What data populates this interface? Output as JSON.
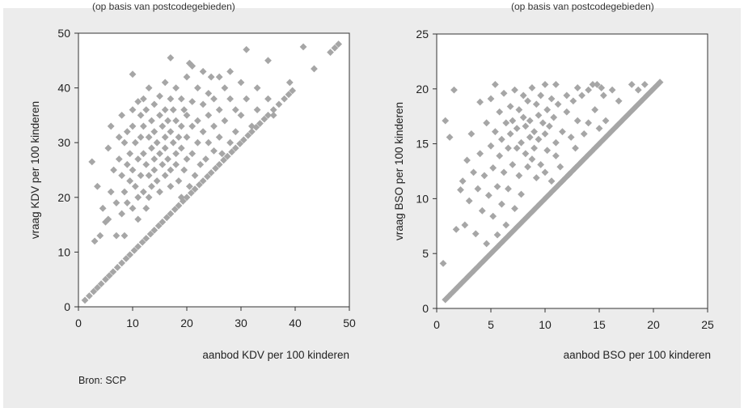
{
  "top_fragments": {
    "left": "(op basis van postcodegebieden)",
    "right": "(op basis van postcodegebieden)"
  },
  "source": "Bron: SCP",
  "colors": {
    "panel_background": "#ececec",
    "plot_background": "#ffffff",
    "marker": "#a6a6a6",
    "frame": "#333333"
  },
  "chart_data": [
    {
      "type": "scatter",
      "title": "",
      "xlabel": "aanbod KDV per 100 kinderen",
      "ylabel": "vraag KDV per 100 kinderen",
      "xlim": [
        0,
        50
      ],
      "ylim": [
        0,
        50
      ],
      "xticks": [
        0,
        10,
        20,
        30,
        40,
        50
      ],
      "yticks": [
        0,
        10,
        20,
        30,
        40,
        50
      ],
      "grid": false,
      "marker": "diamond",
      "points": [
        [
          1.2,
          1.2
        ],
        [
          2,
          2
        ],
        [
          2.8,
          2.8
        ],
        [
          3.5,
          3.5
        ],
        [
          4.2,
          4.2
        ],
        [
          5,
          5
        ],
        [
          5.7,
          5.7
        ],
        [
          6.4,
          6.4
        ],
        [
          7.2,
          7.2
        ],
        [
          8,
          8
        ],
        [
          8.8,
          8.8
        ],
        [
          9.5,
          9.5
        ],
        [
          10.3,
          10.3
        ],
        [
          11,
          11
        ],
        [
          11.8,
          11.8
        ],
        [
          12.5,
          12.5
        ],
        [
          13.3,
          13.3
        ],
        [
          14,
          14
        ],
        [
          14.8,
          14.8
        ],
        [
          15.5,
          15.5
        ],
        [
          16.3,
          16.3
        ],
        [
          17,
          17
        ],
        [
          17.8,
          17.8
        ],
        [
          18.5,
          18.5
        ],
        [
          19.3,
          19.3
        ],
        [
          20,
          20
        ],
        [
          20.8,
          20.8
        ],
        [
          21.5,
          21.5
        ],
        [
          22.3,
          22.3
        ],
        [
          23,
          23
        ],
        [
          23.8,
          23.8
        ],
        [
          24.5,
          24.5
        ],
        [
          25.3,
          25.3
        ],
        [
          26,
          26
        ],
        [
          26.8,
          26.8
        ],
        [
          27.5,
          27.5
        ],
        [
          28.3,
          28.3
        ],
        [
          29,
          29
        ],
        [
          29.8,
          29.8
        ],
        [
          30.5,
          30.5
        ],
        [
          31.3,
          31.3
        ],
        [
          32,
          32
        ],
        [
          32.8,
          32.8
        ],
        [
          33.5,
          33.5
        ],
        [
          34.3,
          34.3
        ],
        [
          35,
          35
        ],
        [
          36,
          36
        ],
        [
          37,
          37
        ],
        [
          38,
          38
        ],
        [
          38.8,
          38.8
        ],
        [
          39.5,
          39.5
        ],
        [
          46.5,
          46.5
        ],
        [
          47.3,
          47.3
        ],
        [
          48,
          48
        ],
        [
          2.5,
          26.5
        ],
        [
          3,
          12
        ],
        [
          3.5,
          22
        ],
        [
          4,
          13
        ],
        [
          4.5,
          18
        ],
        [
          5,
          15.5
        ],
        [
          5.5,
          29
        ],
        [
          5.5,
          16
        ],
        [
          6,
          33
        ],
        [
          6,
          21
        ],
        [
          6.5,
          25
        ],
        [
          7,
          19
        ],
        [
          7,
          13
        ],
        [
          7.5,
          31
        ],
        [
          7.5,
          27
        ],
        [
          8,
          24
        ],
        [
          8,
          17
        ],
        [
          8,
          35
        ],
        [
          8.5,
          30
        ],
        [
          8.5,
          21
        ],
        [
          8.5,
          13
        ],
        [
          9,
          26
        ],
        [
          9,
          32
        ],
        [
          9,
          19
        ],
        [
          9.5,
          23
        ],
        [
          9.5,
          28
        ],
        [
          10,
          42.5
        ],
        [
          10,
          36
        ],
        [
          10,
          33
        ],
        [
          10,
          25
        ],
        [
          10,
          18
        ],
        [
          10.5,
          30
        ],
        [
          10.5,
          22
        ],
        [
          11,
          37.5
        ],
        [
          11,
          27
        ],
        [
          11,
          20
        ],
        [
          11,
          16
        ],
        [
          11.5,
          35
        ],
        [
          11.5,
          31
        ],
        [
          11.5,
          24
        ],
        [
          12,
          38
        ],
        [
          12,
          33
        ],
        [
          12,
          28
        ],
        [
          12,
          21
        ],
        [
          12.5,
          36
        ],
        [
          12.5,
          26
        ],
        [
          12.5,
          18
        ],
        [
          13,
          40
        ],
        [
          13,
          31
        ],
        [
          13,
          24
        ],
        [
          13,
          20
        ],
        [
          13.5,
          34
        ],
        [
          13.5,
          29
        ],
        [
          13.5,
          22
        ],
        [
          14,
          37
        ],
        [
          14,
          32
        ],
        [
          14,
          27
        ],
        [
          14,
          25
        ],
        [
          14.5,
          30
        ],
        [
          14.5,
          23
        ],
        [
          15,
          38.5
        ],
        [
          15,
          35
        ],
        [
          15,
          28
        ],
        [
          15,
          21
        ],
        [
          15.5,
          33
        ],
        [
          15.5,
          26
        ],
        [
          16,
          41
        ],
        [
          16,
          36
        ],
        [
          16,
          31
        ],
        [
          16,
          29
        ],
        [
          16,
          24
        ],
        [
          16.5,
          34
        ],
        [
          16.5,
          27
        ],
        [
          17,
          45.5
        ],
        [
          17,
          38
        ],
        [
          17,
          32
        ],
        [
          17,
          25
        ],
        [
          17,
          22
        ],
        [
          17.5,
          36
        ],
        [
          17.5,
          30
        ],
        [
          18,
          40
        ],
        [
          18,
          34
        ],
        [
          18,
          28
        ],
        [
          18,
          26
        ],
        [
          18.5,
          31
        ],
        [
          18.5,
          23
        ],
        [
          19,
          38
        ],
        [
          19,
          33
        ],
        [
          19,
          29
        ],
        [
          19,
          20
        ],
        [
          19.5,
          36
        ],
        [
          19.5,
          25
        ],
        [
          20,
          42
        ],
        [
          20,
          35
        ],
        [
          20,
          31
        ],
        [
          20,
          27
        ],
        [
          20.5,
          44.5
        ],
        [
          20.5,
          22
        ],
        [
          21,
          44
        ],
        [
          21,
          37.5
        ],
        [
          21,
          33
        ],
        [
          21,
          28
        ],
        [
          21.5,
          24
        ],
        [
          22,
          40
        ],
        [
          22,
          34
        ],
        [
          22,
          30
        ],
        [
          22.5,
          26
        ],
        [
          23,
          43
        ],
        [
          23,
          37
        ],
        [
          23,
          32
        ],
        [
          23.5,
          27
        ],
        [
          24,
          39
        ],
        [
          24,
          35
        ],
        [
          24,
          30
        ],
        [
          24.5,
          42
        ],
        [
          25,
          38
        ],
        [
          25,
          33
        ],
        [
          25,
          28.5
        ],
        [
          26,
          42
        ],
        [
          26,
          36
        ],
        [
          26,
          31
        ],
        [
          26.5,
          28
        ],
        [
          27,
          40
        ],
        [
          27,
          34
        ],
        [
          28,
          43
        ],
        [
          28,
          38
        ],
        [
          28,
          30
        ],
        [
          29,
          36
        ],
        [
          29,
          32
        ],
        [
          30,
          41
        ],
        [
          30,
          35
        ],
        [
          31,
          47
        ],
        [
          31,
          38
        ],
        [
          32,
          33
        ],
        [
          33,
          40
        ],
        [
          33,
          36
        ],
        [
          35,
          45
        ],
        [
          35,
          38
        ],
        [
          36,
          35
        ],
        [
          39,
          41
        ],
        [
          41.5,
          47.5
        ],
        [
          43.5,
          43.5
        ]
      ]
    },
    {
      "type": "scatter",
      "title": "",
      "xlabel": "aanbod BSO per 100 kinderen",
      "ylabel": "vraag BSO per 100 kinderen",
      "xlim": [
        0,
        25
      ],
      "ylim": [
        0,
        25
      ],
      "xticks": [
        0,
        5,
        10,
        15,
        20,
        25
      ],
      "yticks": [
        0,
        5,
        10,
        15,
        20,
        25
      ],
      "grid": false,
      "marker": "diamond",
      "points": [
        [
          0.8,
          0.8
        ],
        [
          1.1,
          1.1
        ],
        [
          1.4,
          1.4
        ],
        [
          1.7,
          1.7
        ],
        [
          2,
          2
        ],
        [
          2.3,
          2.3
        ],
        [
          2.6,
          2.6
        ],
        [
          2.9,
          2.9
        ],
        [
          3.2,
          3.2
        ],
        [
          3.5,
          3.5
        ],
        [
          3.8,
          3.8
        ],
        [
          4.1,
          4.1
        ],
        [
          4.4,
          4.4
        ],
        [
          4.7,
          4.7
        ],
        [
          5,
          5
        ],
        [
          5.3,
          5.3
        ],
        [
          5.6,
          5.6
        ],
        [
          5.9,
          5.9
        ],
        [
          6.2,
          6.2
        ],
        [
          6.5,
          6.5
        ],
        [
          6.8,
          6.8
        ],
        [
          7.1,
          7.1
        ],
        [
          7.4,
          7.4
        ],
        [
          7.7,
          7.7
        ],
        [
          8,
          8
        ],
        [
          8.3,
          8.3
        ],
        [
          8.6,
          8.6
        ],
        [
          8.9,
          8.9
        ],
        [
          9.2,
          9.2
        ],
        [
          9.5,
          9.5
        ],
        [
          9.8,
          9.8
        ],
        [
          10.1,
          10.1
        ],
        [
          10.4,
          10.4
        ],
        [
          10.7,
          10.7
        ],
        [
          11,
          11
        ],
        [
          11.3,
          11.3
        ],
        [
          11.6,
          11.6
        ],
        [
          11.9,
          11.9
        ],
        [
          12.2,
          12.2
        ],
        [
          12.5,
          12.5
        ],
        [
          12.8,
          12.8
        ],
        [
          13.1,
          13.1
        ],
        [
          13.4,
          13.4
        ],
        [
          13.7,
          13.7
        ],
        [
          14,
          14
        ],
        [
          14.3,
          14.3
        ],
        [
          14.6,
          14.6
        ],
        [
          14.9,
          14.9
        ],
        [
          15.2,
          15.2
        ],
        [
          15.5,
          15.5
        ],
        [
          15.8,
          15.8
        ],
        [
          16.1,
          16.1
        ],
        [
          16.4,
          16.4
        ],
        [
          16.7,
          16.7
        ],
        [
          17,
          17
        ],
        [
          17.3,
          17.3
        ],
        [
          17.6,
          17.6
        ],
        [
          17.9,
          17.9
        ],
        [
          18.2,
          18.2
        ],
        [
          18.5,
          18.5
        ],
        [
          18.8,
          18.8
        ],
        [
          19.1,
          19.1
        ],
        [
          19.4,
          19.4
        ],
        [
          19.7,
          19.7
        ],
        [
          20,
          20
        ],
        [
          20.3,
          20.3
        ],
        [
          20.6,
          20.6
        ],
        [
          0.6,
          4.1
        ],
        [
          0.8,
          17.1
        ],
        [
          1.2,
          15.6
        ],
        [
          1.6,
          19.9
        ],
        [
          1.8,
          7.2
        ],
        [
          2.2,
          10.8
        ],
        [
          2.4,
          11.6
        ],
        [
          2.6,
          7.6
        ],
        [
          2.8,
          13.5
        ],
        [
          3,
          9.8
        ],
        [
          3.2,
          15.9
        ],
        [
          3.4,
          12.4
        ],
        [
          3.6,
          6.8
        ],
        [
          3.8,
          10.9
        ],
        [
          4,
          18.8
        ],
        [
          4,
          14.1
        ],
        [
          4.2,
          8.9
        ],
        [
          4.4,
          12.1
        ],
        [
          4.6,
          16.9
        ],
        [
          4.6,
          5.9
        ],
        [
          4.8,
          10.3
        ],
        [
          5,
          14.8
        ],
        [
          5,
          19.1
        ],
        [
          5.2,
          12.8
        ],
        [
          5.2,
          8.4
        ],
        [
          5.4,
          16.1
        ],
        [
          5.4,
          20.4
        ],
        [
          5.6,
          11.1
        ],
        [
          5.6,
          6.7
        ],
        [
          5.8,
          13.9
        ],
        [
          5.8,
          17.9
        ],
        [
          6,
          15.4
        ],
        [
          6,
          9.5
        ],
        [
          6.2,
          19.6
        ],
        [
          6.2,
          12.4
        ],
        [
          6.4,
          16.9
        ],
        [
          6.4,
          7.6
        ],
        [
          6.6,
          14.6
        ],
        [
          6.6,
          10.9
        ],
        [
          6.8,
          18.4
        ],
        [
          6.8,
          15.9
        ],
        [
          7,
          13.1
        ],
        [
          7,
          17.1
        ],
        [
          7.2,
          9.1
        ],
        [
          7.2,
          19.9
        ],
        [
          7.4,
          14.6
        ],
        [
          7.4,
          16.4
        ],
        [
          7.6,
          12.1
        ],
        [
          7.6,
          18.1
        ],
        [
          7.8,
          15.1
        ],
        [
          7.8,
          10.4
        ],
        [
          8,
          17.4
        ],
        [
          8,
          19.4
        ],
        [
          8.2,
          14.1
        ],
        [
          8.2,
          16.6
        ],
        [
          8.4,
          12.9
        ],
        [
          8.4,
          18.9
        ],
        [
          8.6,
          15.6
        ],
        [
          8.6,
          17.1
        ],
        [
          8.8,
          13.6
        ],
        [
          8.8,
          20.1
        ],
        [
          9,
          16.1
        ],
        [
          9,
          14.6
        ],
        [
          9.2,
          18.6
        ],
        [
          9.2,
          11.9
        ],
        [
          9.4,
          17.6
        ],
        [
          9.4,
          15.4
        ],
        [
          9.6,
          19.4
        ],
        [
          9.6,
          13.1
        ],
        [
          9.8,
          16.9
        ],
        [
          10,
          20.4
        ],
        [
          10,
          15.9
        ],
        [
          10,
          12.4
        ],
        [
          10.2,
          18.1
        ],
        [
          10.2,
          14.4
        ],
        [
          10.4,
          16.6
        ],
        [
          10.6,
          19.1
        ],
        [
          10.6,
          11.6
        ],
        [
          10.8,
          17.4
        ],
        [
          11,
          20.4
        ],
        [
          11,
          15.1
        ],
        [
          11,
          13.9
        ],
        [
          11.2,
          18.6
        ],
        [
          11.4,
          12.9
        ],
        [
          11.6,
          16.1
        ],
        [
          12,
          17.9
        ],
        [
          12,
          19.4
        ],
        [
          12.2,
          12.2
        ],
        [
          12.4,
          15.6
        ],
        [
          12.6,
          18.9
        ],
        [
          12.8,
          14.6
        ],
        [
          13,
          20.1
        ],
        [
          13,
          17.1
        ],
        [
          13.4,
          19.4
        ],
        [
          13.6,
          15.9
        ],
        [
          14,
          16.9
        ],
        [
          14,
          19.9
        ],
        [
          14.4,
          20.4
        ],
        [
          14.6,
          18.1
        ],
        [
          14.8,
          20.4
        ],
        [
          15,
          16.4
        ],
        [
          15.2,
          20.1
        ],
        [
          15.4,
          19.4
        ],
        [
          15.6,
          17.1
        ],
        [
          16.2,
          19.9
        ],
        [
          16.8,
          18.9
        ],
        [
          18,
          20.4
        ],
        [
          18.6,
          19.9
        ],
        [
          19.2,
          20.4
        ]
      ]
    }
  ]
}
